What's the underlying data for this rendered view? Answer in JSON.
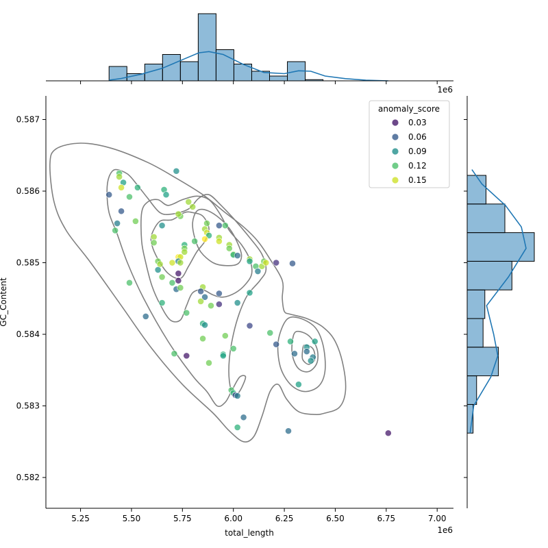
{
  "chart_data": {
    "type": "scatter",
    "title": "",
    "xlabel": "total_length",
    "ylabel": "GC_Content",
    "x_offset_label": "1e6",
    "xlim": [
      5.08,
      7.08
    ],
    "ylim": [
      0.58157,
      0.58733
    ],
    "x_ticks": [
      5.25,
      5.5,
      5.75,
      6.0,
      6.25,
      6.5,
      6.75,
      7.0
    ],
    "x_tick_labels": [
      "5.25",
      "5.50",
      "5.75",
      "6.00",
      "6.25",
      "6.50",
      "6.75",
      "7.00"
    ],
    "y_ticks": [
      0.582,
      0.583,
      0.584,
      0.585,
      0.586,
      0.587
    ],
    "y_tick_labels": [
      "0.582",
      "0.583",
      "0.584",
      "0.585",
      "0.586",
      "0.587"
    ],
    "grid": false,
    "legend": {
      "title": "anomaly_score",
      "placement": "top-right",
      "entries": [
        {
          "label": "0.03",
          "value": 0.03
        },
        {
          "label": "0.06",
          "value": 0.06
        },
        {
          "label": "0.09",
          "value": 0.09
        },
        {
          "label": "0.12",
          "value": 0.12
        },
        {
          "label": "0.15",
          "value": 0.15
        }
      ]
    },
    "colormap": "viridis",
    "color_range": [
      0.02,
      0.16
    ],
    "points": [
      [
        5.44,
        0.58625,
        0.12
      ],
      [
        5.44,
        0.5862,
        0.14
      ],
      [
        5.46,
        0.58612,
        0.1
      ],
      [
        5.45,
        0.58605,
        0.15
      ],
      [
        5.39,
        0.58595,
        0.06
      ],
      [
        5.49,
        0.58592,
        0.12
      ],
      [
        5.53,
        0.58605,
        0.11
      ],
      [
        5.45,
        0.58572,
        0.06
      ],
      [
        5.43,
        0.58555,
        0.08
      ],
      [
        5.42,
        0.58545,
        0.12
      ],
      [
        5.52,
        0.58558,
        0.13
      ],
      [
        5.49,
        0.58472,
        0.12
      ],
      [
        5.57,
        0.58425,
        0.07
      ],
      [
        5.61,
        0.58536,
        0.14
      ],
      [
        5.61,
        0.58528,
        0.13
      ],
      [
        5.66,
        0.58602,
        0.11
      ],
      [
        5.67,
        0.58595,
        0.1
      ],
      [
        5.72,
        0.58628,
        0.09
      ],
      [
        5.65,
        0.58552,
        0.09
      ],
      [
        5.63,
        0.58502,
        0.13
      ],
      [
        5.64,
        0.58498,
        0.14
      ],
      [
        5.63,
        0.5849,
        0.09
      ],
      [
        5.65,
        0.5848,
        0.13
      ],
      [
        5.7,
        0.58472,
        0.12
      ],
      [
        5.73,
        0.58485,
        0.03
      ],
      [
        5.73,
        0.58475,
        0.03
      ],
      [
        5.72,
        0.58463,
        0.07
      ],
      [
        5.74,
        0.58465,
        0.13
      ],
      [
        5.65,
        0.58444,
        0.11
      ],
      [
        5.7,
        0.585,
        0.15
      ],
      [
        5.73,
        0.58508,
        0.16
      ],
      [
        5.74,
        0.58508,
        0.15
      ],
      [
        5.73,
        0.58502,
        0.08
      ],
      [
        5.74,
        0.585,
        0.14
      ],
      [
        5.74,
        0.58565,
        0.13
      ],
      [
        5.73,
        0.58568,
        0.14
      ],
      [
        5.76,
        0.58525,
        0.11
      ],
      [
        5.76,
        0.5852,
        0.13
      ],
      [
        5.76,
        0.58515,
        0.14
      ],
      [
        5.78,
        0.58585,
        0.14
      ],
      [
        5.8,
        0.58578,
        0.14
      ],
      [
        5.81,
        0.5853,
        0.12
      ],
      [
        5.87,
        0.58555,
        0.13
      ],
      [
        5.86,
        0.58547,
        0.14
      ],
      [
        5.87,
        0.58542,
        0.15
      ],
      [
        5.88,
        0.58538,
        0.11
      ],
      [
        5.86,
        0.58533,
        0.16
      ],
      [
        5.93,
        0.58552,
        0.06
      ],
      [
        5.96,
        0.58552,
        0.12
      ],
      [
        5.93,
        0.58535,
        0.14
      ],
      [
        5.93,
        0.5853,
        0.15
      ],
      [
        5.98,
        0.58525,
        0.14
      ],
      [
        5.98,
        0.5852,
        0.13
      ],
      [
        6.0,
        0.58512,
        0.14
      ],
      [
        6.0,
        0.58511,
        0.11
      ],
      [
        6.02,
        0.5851,
        0.07
      ],
      [
        6.08,
        0.58505,
        0.14
      ],
      [
        6.08,
        0.58502,
        0.1
      ],
      [
        6.11,
        0.58495,
        0.12
      ],
      [
        6.14,
        0.58495,
        0.14
      ],
      [
        6.15,
        0.58502,
        0.13
      ],
      [
        6.16,
        0.585,
        0.15
      ],
      [
        6.12,
        0.58488,
        0.08
      ],
      [
        6.21,
        0.585,
        0.04
      ],
      [
        6.29,
        0.58499,
        0.06
      ],
      [
        5.85,
        0.58466,
        0.14
      ],
      [
        5.84,
        0.5846,
        0.06
      ],
      [
        5.86,
        0.58452,
        0.07
      ],
      [
        5.84,
        0.58446,
        0.14
      ],
      [
        5.89,
        0.5844,
        0.13
      ],
      [
        5.93,
        0.58457,
        0.06
      ],
      [
        5.93,
        0.58442,
        0.04
      ],
      [
        6.02,
        0.58444,
        0.09
      ],
      [
        6.08,
        0.58458,
        0.1
      ],
      [
        5.77,
        0.5843,
        0.12
      ],
      [
        5.85,
        0.58415,
        0.11
      ],
      [
        5.86,
        0.58413,
        0.09
      ],
      [
        5.96,
        0.58398,
        0.13
      ],
      [
        5.85,
        0.58394,
        0.13
      ],
      [
        5.88,
        0.5836,
        0.13
      ],
      [
        5.95,
        0.58372,
        0.11
      ],
      [
        5.95,
        0.5837,
        0.1
      ],
      [
        5.71,
        0.58373,
        0.12
      ],
      [
        5.77,
        0.5837,
        0.03
      ],
      [
        6.0,
        0.5838,
        0.12
      ],
      [
        6.08,
        0.58412,
        0.05
      ],
      [
        6.18,
        0.58402,
        0.12
      ],
      [
        6.21,
        0.58386,
        0.06
      ],
      [
        6.28,
        0.5839,
        0.11
      ],
      [
        6.36,
        0.58382,
        0.09
      ],
      [
        6.36,
        0.58376,
        0.07
      ],
      [
        6.3,
        0.58373,
        0.07
      ],
      [
        6.39,
        0.58368,
        0.08
      ],
      [
        6.38,
        0.58363,
        0.09
      ],
      [
        6.4,
        0.5839,
        0.1
      ],
      [
        6.32,
        0.5833,
        0.1
      ],
      [
        5.99,
        0.58322,
        0.12
      ],
      [
        6.0,
        0.58318,
        0.11
      ],
      [
        6.01,
        0.58315,
        0.05
      ],
      [
        6.02,
        0.58314,
        0.08
      ],
      [
        6.05,
        0.58284,
        0.07
      ],
      [
        6.02,
        0.5827,
        0.11
      ],
      [
        6.27,
        0.58265,
        0.07
      ],
      [
        6.76,
        0.58262,
        0.03
      ]
    ],
    "kde_contours": [
      [
        [
          5.1,
          0.58638
        ],
        [
          5.13,
          0.58659
        ],
        [
          5.25,
          0.58667
        ],
        [
          5.4,
          0.5866
        ],
        [
          5.58,
          0.5864
        ],
        [
          5.72,
          0.58618
        ],
        [
          5.85,
          0.58595
        ],
        [
          5.96,
          0.5857
        ],
        [
          6.05,
          0.5855
        ],
        [
          6.12,
          0.5853
        ],
        [
          6.18,
          0.58505
        ],
        [
          6.24,
          0.58475
        ],
        [
          6.24,
          0.5845
        ],
        [
          6.25,
          0.58432
        ],
        [
          6.28,
          0.58428
        ],
        [
          6.36,
          0.58422
        ],
        [
          6.44,
          0.5841
        ],
        [
          6.5,
          0.5839
        ],
        [
          6.54,
          0.58355
        ],
        [
          6.55,
          0.5832
        ],
        [
          6.52,
          0.58298
        ],
        [
          6.45,
          0.5829
        ],
        [
          6.4,
          0.58288
        ],
        [
          6.32,
          0.58292
        ],
        [
          6.26,
          0.5831
        ],
        [
          6.22,
          0.5833
        ],
        [
          6.18,
          0.5832
        ],
        [
          6.14,
          0.58285
        ],
        [
          6.1,
          0.58257
        ],
        [
          6.05,
          0.5825
        ],
        [
          5.98,
          0.58265
        ],
        [
          5.9,
          0.5829
        ],
        [
          5.75,
          0.5833
        ],
        [
          5.6,
          0.5838
        ],
        [
          5.45,
          0.5844
        ],
        [
          5.3,
          0.585
        ],
        [
          5.18,
          0.58545
        ],
        [
          5.12,
          0.58585
        ],
        [
          5.1,
          0.58638
        ]
      ],
      [
        [
          5.39,
          0.5862
        ],
        [
          5.42,
          0.5863
        ],
        [
          5.48,
          0.58624
        ],
        [
          5.53,
          0.58608
        ],
        [
          5.58,
          0.5859
        ],
        [
          5.64,
          0.5857
        ],
        [
          5.7,
          0.58568
        ],
        [
          5.78,
          0.58575
        ],
        [
          5.83,
          0.5859
        ],
        [
          5.88,
          0.58595
        ],
        [
          5.94,
          0.5858
        ],
        [
          6.0,
          0.58562
        ],
        [
          6.08,
          0.58535
        ],
        [
          6.14,
          0.58512
        ],
        [
          6.16,
          0.5849
        ],
        [
          6.13,
          0.58475
        ],
        [
          6.07,
          0.58455
        ],
        [
          6.03,
          0.5843
        ],
        [
          6.0,
          0.584
        ],
        [
          5.98,
          0.58365
        ],
        [
          5.98,
          0.58335
        ],
        [
          6.0,
          0.58315
        ],
        [
          6.03,
          0.5832
        ],
        [
          6.06,
          0.5834
        ],
        [
          6.03,
          0.5834
        ],
        [
          5.99,
          0.5832
        ],
        [
          5.96,
          0.58305
        ],
        [
          5.92,
          0.583
        ],
        [
          5.87,
          0.5832
        ],
        [
          5.8,
          0.58342
        ],
        [
          5.68,
          0.5839
        ],
        [
          5.56,
          0.5845
        ],
        [
          5.48,
          0.585
        ],
        [
          5.43,
          0.5854
        ],
        [
          5.39,
          0.5857
        ],
        [
          5.38,
          0.586
        ],
        [
          5.39,
          0.5862
        ]
      ],
      [
        [
          5.55,
          0.5857
        ],
        [
          5.58,
          0.58585
        ],
        [
          5.63,
          0.58588
        ],
        [
          5.68,
          0.5858
        ],
        [
          5.75,
          0.58588
        ],
        [
          5.82,
          0.58593
        ],
        [
          5.88,
          0.58588
        ],
        [
          5.93,
          0.5857
        ],
        [
          5.98,
          0.58545
        ],
        [
          6.04,
          0.58525
        ],
        [
          6.08,
          0.58505
        ],
        [
          6.09,
          0.58485
        ],
        [
          6.06,
          0.5847
        ],
        [
          6.01,
          0.58458
        ],
        [
          5.95,
          0.58452
        ],
        [
          5.9,
          0.58455
        ],
        [
          5.85,
          0.58462
        ],
        [
          5.8,
          0.58458
        ],
        [
          5.77,
          0.5844
        ],
        [
          5.74,
          0.5842
        ],
        [
          5.69,
          0.5842
        ],
        [
          5.64,
          0.58442
        ],
        [
          5.6,
          0.58468
        ],
        [
          5.57,
          0.585
        ],
        [
          5.55,
          0.5853
        ],
        [
          5.55,
          0.5857
        ]
      ],
      [
        [
          5.6,
          0.5854
        ],
        [
          5.64,
          0.58558
        ],
        [
          5.7,
          0.5856
        ],
        [
          5.76,
          0.5857
        ],
        [
          5.8,
          0.5857
        ],
        [
          5.85,
          0.58565
        ],
        [
          5.88,
          0.58548
        ],
        [
          5.86,
          0.5853
        ],
        [
          5.82,
          0.58515
        ],
        [
          5.78,
          0.58495
        ],
        [
          5.74,
          0.58478
        ],
        [
          5.68,
          0.58485
        ],
        [
          5.63,
          0.58505
        ],
        [
          5.6,
          0.58525
        ],
        [
          5.6,
          0.5854
        ]
      ],
      [
        [
          5.82,
          0.58572
        ],
        [
          5.86,
          0.58574
        ],
        [
          5.92,
          0.58565
        ],
        [
          5.98,
          0.58548
        ],
        [
          6.02,
          0.58528
        ],
        [
          6.04,
          0.5851
        ],
        [
          6.02,
          0.58498
        ],
        [
          5.96,
          0.58496
        ],
        [
          5.9,
          0.585
        ],
        [
          5.84,
          0.58515
        ],
        [
          5.81,
          0.58535
        ],
        [
          5.8,
          0.58556
        ],
        [
          5.82,
          0.58572
        ]
      ],
      [
        [
          6.26,
          0.5842
        ],
        [
          6.32,
          0.58423
        ],
        [
          6.4,
          0.5841
        ],
        [
          6.44,
          0.58385
        ],
        [
          6.45,
          0.5835
        ],
        [
          6.42,
          0.58328
        ],
        [
          6.35,
          0.5832
        ],
        [
          6.28,
          0.5833
        ],
        [
          6.23,
          0.58355
        ],
        [
          6.22,
          0.5839
        ],
        [
          6.26,
          0.5842
        ]
      ],
      [
        [
          6.31,
          0.58404
        ],
        [
          6.37,
          0.58398
        ],
        [
          6.41,
          0.5838
        ],
        [
          6.41,
          0.5836
        ],
        [
          6.37,
          0.58348
        ],
        [
          6.32,
          0.58352
        ],
        [
          6.29,
          0.5837
        ],
        [
          6.29,
          0.58392
        ],
        [
          6.31,
          0.58404
        ]
      ],
      [
        [
          6.35,
          0.58385
        ],
        [
          6.39,
          0.5838
        ],
        [
          6.4,
          0.58365
        ],
        [
          6.37,
          0.58358
        ],
        [
          6.34,
          0.58365
        ],
        [
          6.34,
          0.58378
        ],
        [
          6.35,
          0.58385
        ]
      ]
    ],
    "x_marginal": {
      "bin_edges": [
        5.39,
        5.4775,
        5.565,
        5.6525,
        5.74,
        5.8275,
        5.915,
        6.0025,
        6.09,
        6.1775,
        6.265,
        6.3525,
        6.44,
        6.5275,
        6.615,
        6.7025,
        6.79
      ],
      "counts": [
        6,
        3,
        7,
        11,
        8,
        28,
        13,
        7,
        4,
        2,
        8,
        0.5,
        0,
        0,
        0,
        0
      ],
      "kde": [
        [
          5.39,
          0.3
        ],
        [
          5.45,
          1.0
        ],
        [
          5.55,
          2.8
        ],
        [
          5.65,
          5.2
        ],
        [
          5.75,
          8.8
        ],
        [
          5.83,
          11.7
        ],
        [
          5.88,
          12.2
        ],
        [
          5.95,
          11.0
        ],
        [
          6.05,
          6.8
        ],
        [
          6.15,
          3.5
        ],
        [
          6.25,
          3.0
        ],
        [
          6.32,
          4.2
        ],
        [
          6.38,
          4.0
        ],
        [
          6.45,
          2.0
        ],
        [
          6.55,
          0.9
        ],
        [
          6.65,
          0.3
        ],
        [
          6.76,
          0.0
        ]
      ]
    },
    "y_marginal": {
      "bin_edges": [
        0.58262,
        0.58302,
        0.58342,
        0.58382,
        0.58422,
        0.58462,
        0.58502,
        0.58542,
        0.58582,
        0.58622
      ],
      "counts": [
        1,
        1.6,
        5.3,
        2.7,
        3.0,
        7.6,
        11.4,
        6.4,
        3.2
      ],
      "kde": [
        [
          0.58262,
          0.5
        ],
        [
          0.583,
          1.1
        ],
        [
          0.5834,
          4.0
        ],
        [
          0.5837,
          5.2
        ],
        [
          0.584,
          4.5
        ],
        [
          0.5844,
          3.3
        ],
        [
          0.5848,
          7.0
        ],
        [
          0.5852,
          10.0
        ],
        [
          0.5855,
          9.2
        ],
        [
          0.5858,
          6.5
        ],
        [
          0.5861,
          2.5
        ],
        [
          0.5863,
          0.8
        ]
      ]
    }
  }
}
